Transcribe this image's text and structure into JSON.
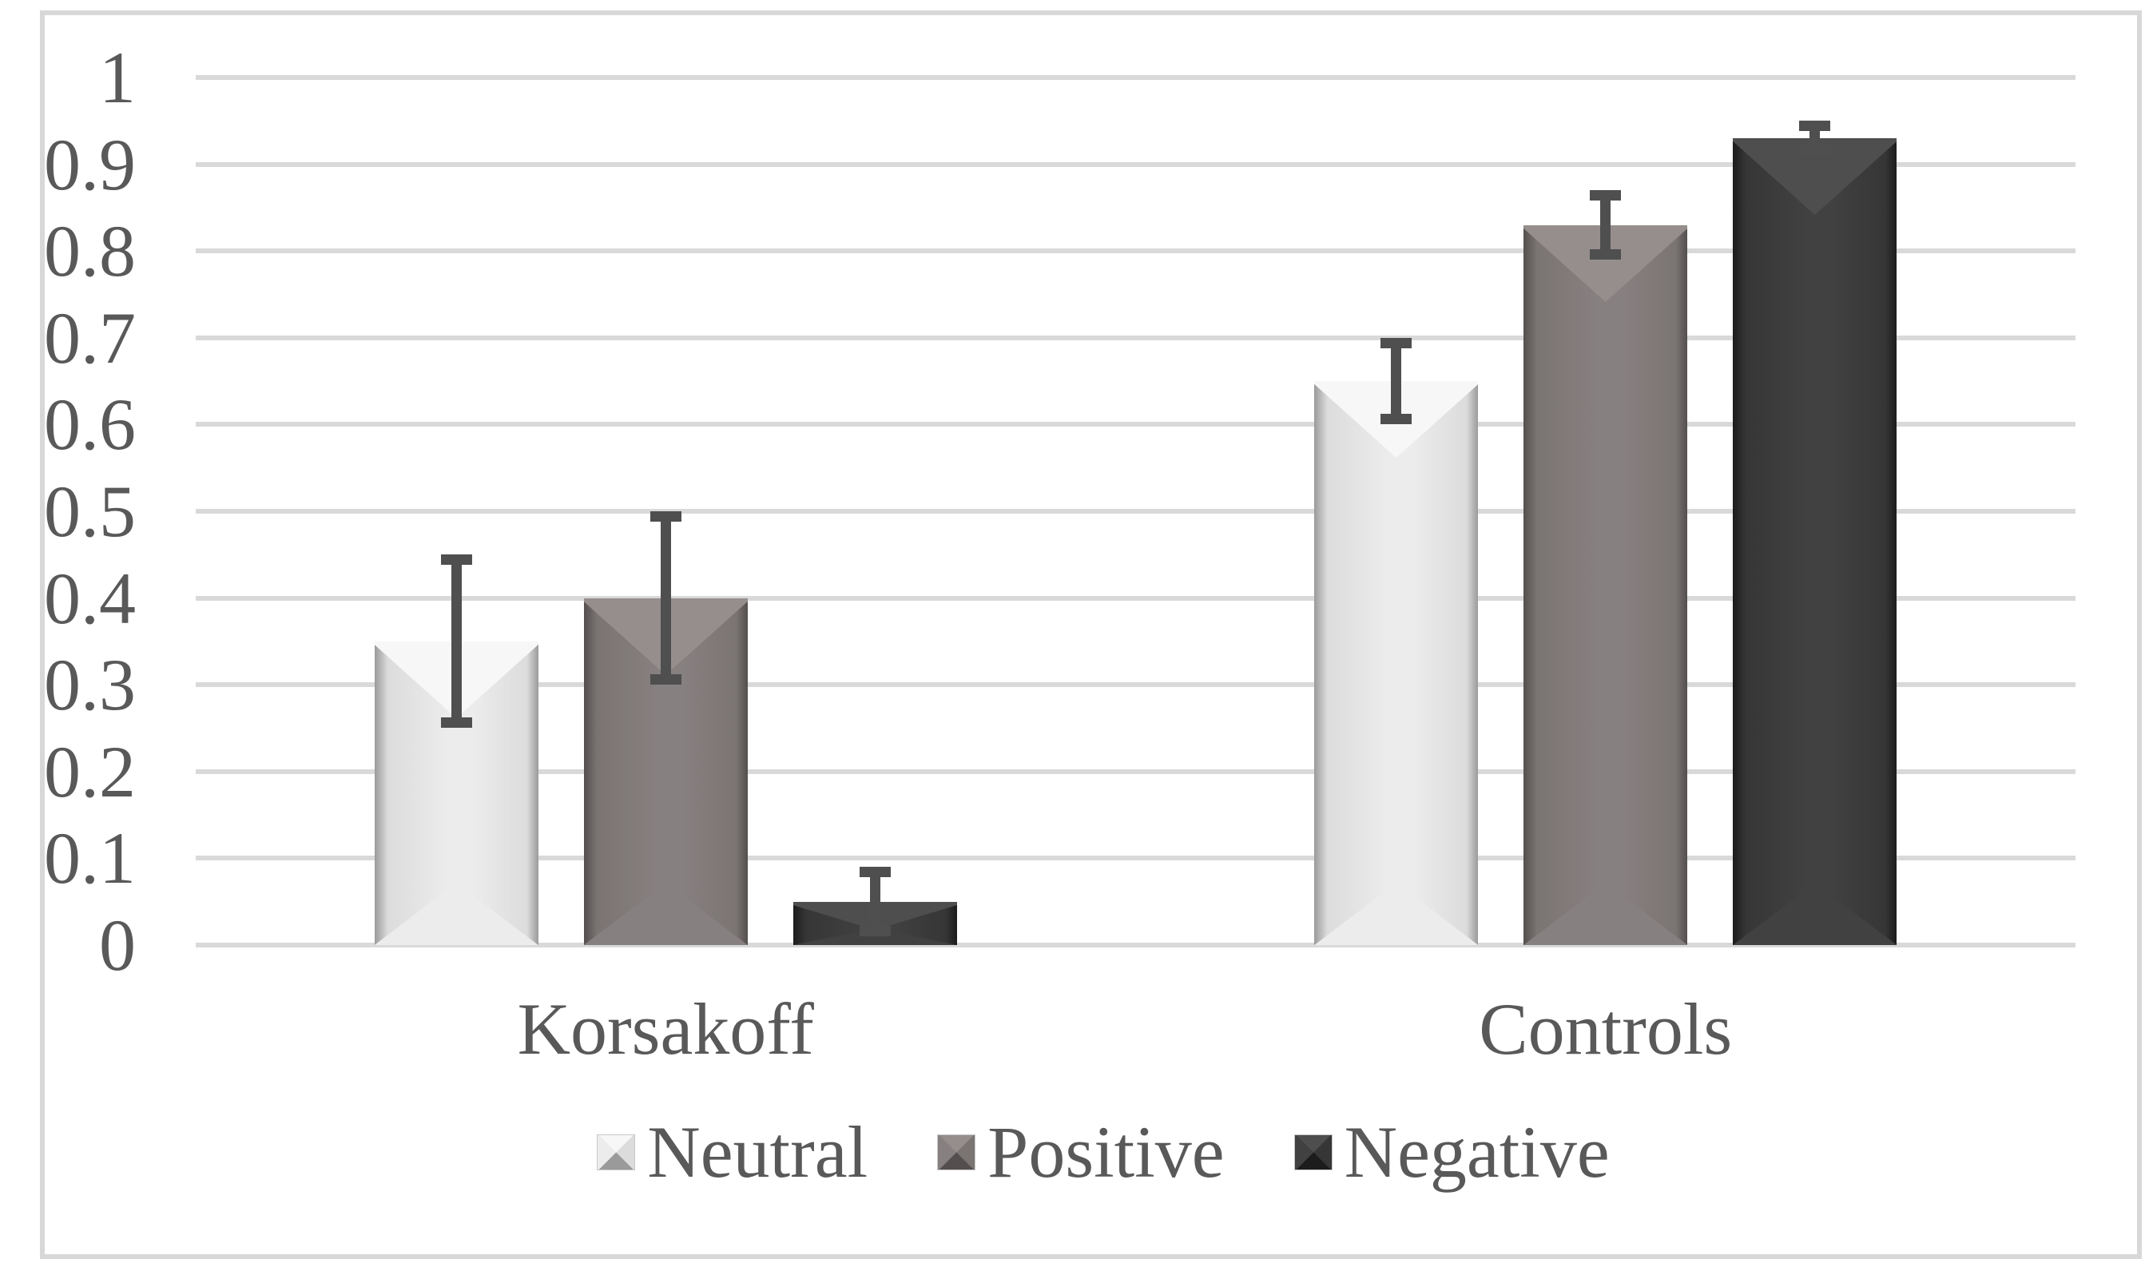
{
  "figure": {
    "background": "#ffffff",
    "frame_border_color": "#d8d8d8",
    "text_color": "#595959",
    "gridline_color": "#d9d9d9",
    "error_bar_color": "#4f4f4f"
  },
  "chart_data": {
    "type": "bar",
    "title": "",
    "xlabel": "",
    "ylabel": "",
    "categories": [
      "Korsakoff",
      "Controls"
    ],
    "series": [
      {
        "name": "Neutral",
        "values": [
          0.35,
          0.65
        ],
        "error": [
          0.1,
          0.05
        ],
        "palette": {
          "edge": "#9a9a9a",
          "body": "#dcdcdc",
          "light": "#ececec",
          "bevel": "#f7f7f7"
        }
      },
      {
        "name": "Positive",
        "values": [
          0.4,
          0.83
        ],
        "error": [
          0.1,
          0.04
        ],
        "palette": {
          "edge": "#544f4e",
          "body": "#7a7473",
          "light": "#878080",
          "bevel": "#958e8c"
        }
      },
      {
        "name": "Negative",
        "values": [
          0.05,
          0.93
        ],
        "error": [
          0.04,
          0.02
        ],
        "palette": {
          "edge": "#1c1c1c",
          "body": "#363636",
          "light": "#414141",
          "bevel": "#4e4e4e"
        }
      }
    ],
    "ylim": [
      0,
      1
    ],
    "ytick_step": 0.1,
    "ytick_labels": [
      "0",
      "0.1",
      "0.2",
      "0.3",
      "0.4",
      "0.5",
      "0.6",
      "0.7",
      "0.8",
      "0.9",
      "1"
    ],
    "grid": true,
    "error_bars": true,
    "legend_position": "bottom-center",
    "bar_style": "3d-bevel"
  }
}
